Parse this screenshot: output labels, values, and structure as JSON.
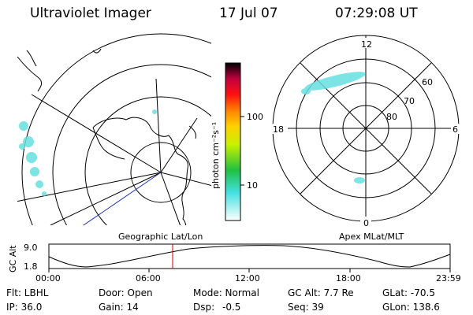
{
  "header": {
    "instrument": "Ultraviolet Imager",
    "date": "17 Jul 07",
    "time": "07:29:08 UT"
  },
  "colorbar": {
    "unit_label": "photon cm⁻²s⁻¹",
    "ticks": [
      "100",
      "10"
    ]
  },
  "left_map": {
    "label": "Geographic Lat/Lon"
  },
  "right_map": {
    "label": "Apex MLat/MLT",
    "hour_labels": [
      "12",
      "18",
      "6",
      "0"
    ],
    "lat_labels": [
      "60",
      "70",
      "80"
    ]
  },
  "altitude_plot": {
    "axis_label": "GC Alt",
    "y_ticks": [
      "9.0",
      "1.8"
    ],
    "x_ticks": [
      "00:00",
      "06:00",
      "12:00",
      "18:00",
      "23:59"
    ],
    "marker_color": "#cc0000"
  },
  "status": {
    "flt": "Flt: LBHL",
    "door": "Door: Open",
    "mode": "Mode: Normal",
    "gc_alt": "GC Alt: 7.7 Re",
    "glat": "GLat: -70.5",
    "ip": "IP: 36.0",
    "gain": "Gain: 14",
    "dsp_label": "Dsp:",
    "dsp_value": "-0.5",
    "seq": "Seq: 39",
    "glon": "GLon: 138.6"
  }
}
